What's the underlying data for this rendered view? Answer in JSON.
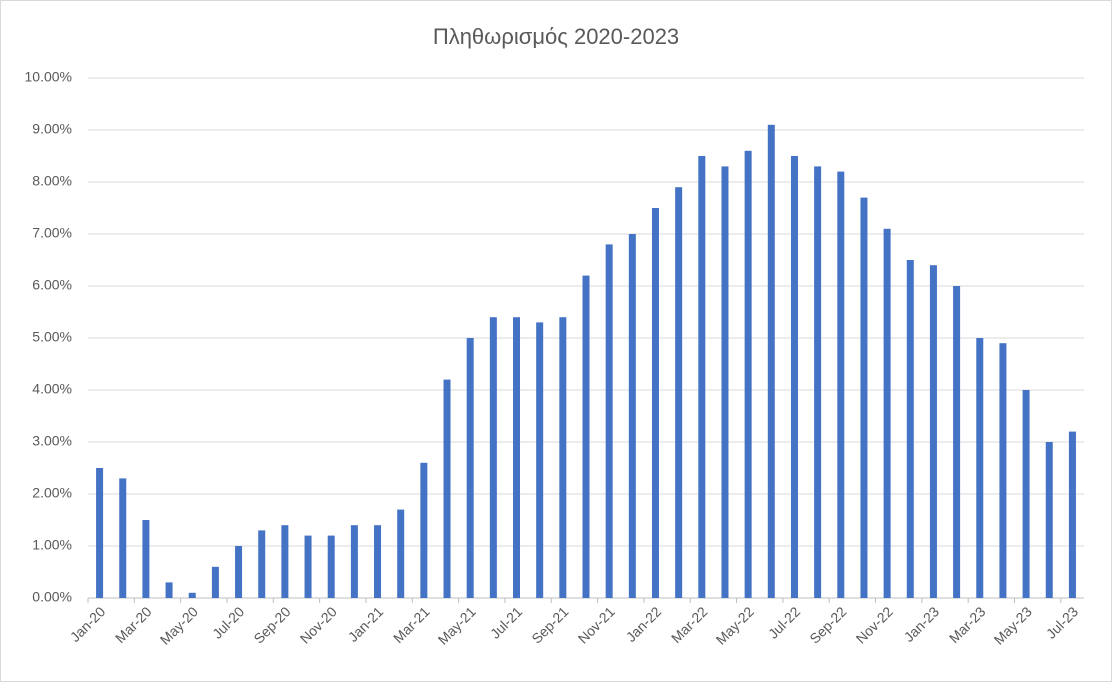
{
  "chart_data": {
    "type": "bar",
    "title": "Πληθωρισμός 2020-2023",
    "categories": [
      "Jan-20",
      null,
      "Mar-20",
      null,
      "May-20",
      null,
      "Jul-20",
      null,
      "Sep-20",
      null,
      "Nov-20",
      null,
      "Jan-21",
      null,
      "Mar-21",
      null,
      "May-21",
      null,
      "Jul-21",
      null,
      "Sep-21",
      null,
      "Nov-21",
      null,
      "Jan-22",
      null,
      "Mar-22",
      null,
      "May-22",
      null,
      "Jul-22",
      null,
      "Sep-22",
      null,
      "Nov-22",
      null,
      "Jan-23",
      null,
      "Mar-23",
      null,
      "May-23",
      null,
      "Jul-23"
    ],
    "values": [
      2.5,
      2.3,
      1.5,
      0.3,
      0.1,
      0.6,
      1.0,
      1.3,
      1.4,
      1.2,
      1.2,
      1.4,
      1.4,
      1.7,
      2.6,
      4.2,
      5.0,
      5.4,
      5.4,
      5.3,
      5.4,
      6.2,
      6.8,
      7.0,
      7.5,
      7.9,
      8.5,
      8.3,
      8.6,
      9.1,
      8.5,
      8.3,
      8.2,
      7.7,
      7.1,
      6.5,
      6.4,
      6.0,
      5.0,
      4.9,
      4.0,
      3.0,
      3.2
    ],
    "color": "#4472c4",
    "ylim": [
      0,
      10
    ],
    "yticks": [
      {
        "value": 0,
        "label": "0.00%"
      },
      {
        "value": 1,
        "label": "1.00%"
      },
      {
        "value": 2,
        "label": "2.00%"
      },
      {
        "value": 3,
        "label": "3.00%"
      },
      {
        "value": 4,
        "label": "4.00%"
      },
      {
        "value": 5,
        "label": "5.00%"
      },
      {
        "value": 6,
        "label": "6.00%"
      },
      {
        "value": 7,
        "label": "7.00%"
      },
      {
        "value": 8,
        "label": "8.00%"
      },
      {
        "value": 9,
        "label": "9.00%"
      },
      {
        "value": 10,
        "label": "10.00%"
      }
    ],
    "grid": true
  }
}
